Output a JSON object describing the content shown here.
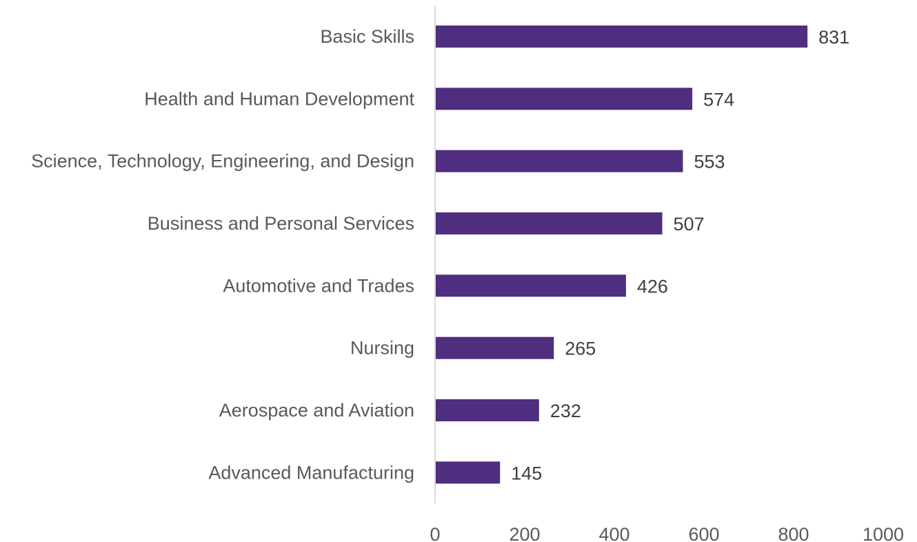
{
  "chart_data": {
    "type": "bar",
    "orientation": "horizontal",
    "categories": [
      "Basic Skills",
      "Health and Human Development",
      "Science, Technology, Engineering, and Design",
      "Business and Personal Services",
      "Automotive and Trades",
      "Nursing",
      "Aerospace and Aviation",
      "Advanced Manufacturing"
    ],
    "values": [
      831,
      574,
      553,
      507,
      426,
      265,
      232,
      145
    ],
    "xlim": [
      0,
      1000
    ],
    "xticks": [
      0,
      200,
      400,
      600,
      800,
      1000
    ],
    "title": "",
    "xlabel": "",
    "ylabel": "",
    "grid": false,
    "legend": "none",
    "bar_color": "#4f2d7f",
    "axis_color": "#d9d9d9"
  }
}
